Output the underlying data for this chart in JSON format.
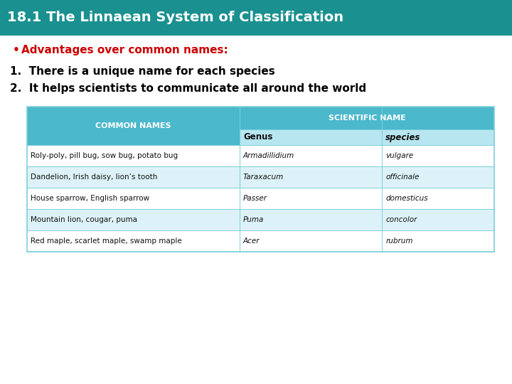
{
  "title": "18.1 The Linnaean System of Classification",
  "title_color": "#ffffff",
  "title_bg_color": "#1a9090",
  "bullet_text": "Advantages over common names:",
  "bullet_color": "#cc0000",
  "point1": "1.  There is a unique name for each species",
  "point2": "2.  It helps scientists to communicate all around the world",
  "points_color": "#000000",
  "table_header1": "COMMON NAMES",
  "table_header2": "SCIENTIFIC NAME",
  "table_subheader_genus": "Genus",
  "table_subheader_species": "species",
  "table_header_bg": "#4bb8cc",
  "table_subheader_bg": "#b8e6f0",
  "table_row_bg_alt": "#ddf2f8",
  "table_row_bg_white": "#ffffff",
  "table_border_color": "#7dcfdb",
  "rows": [
    [
      "Roly-poly, pill bug, sow bug, potato bug",
      "Armadillidium",
      "vulgare"
    ],
    [
      "Dandelion, Irish daisy, lion’s tooth",
      "Taraxacum",
      "officinale"
    ],
    [
      "House sparrow, English sparrow",
      "Passer",
      "domesticus"
    ],
    [
      "Mountain lion, cougar, puma",
      "Puma",
      "concolor"
    ],
    [
      "Red maple, scarlet maple, swamp maple",
      "Acer",
      "rubrum"
    ]
  ],
  "title_fontsize": 14,
  "bullet_fontsize": 11,
  "point_fontsize": 11,
  "table_header_fontsize": 8,
  "table_data_fontsize": 7.5
}
